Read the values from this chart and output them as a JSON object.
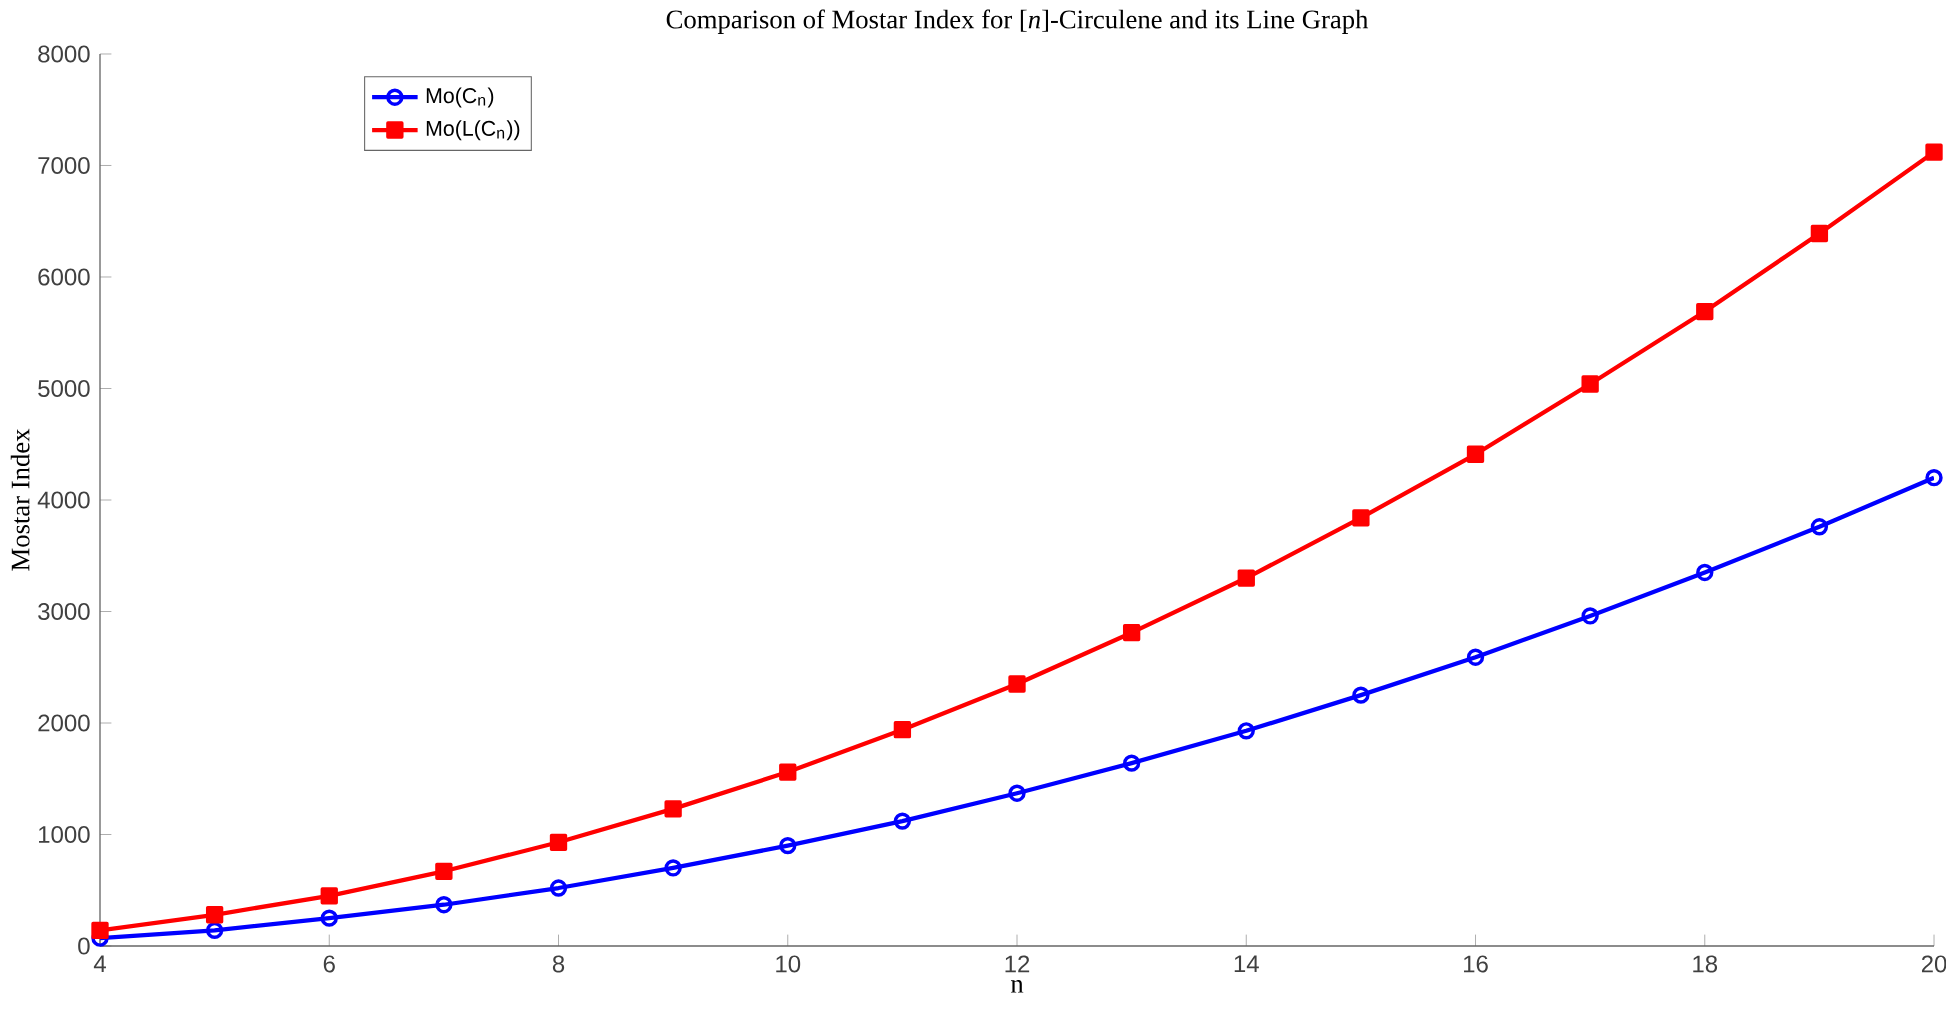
{
  "chart_data": {
    "type": "line",
    "title": "Comparison of Mostar Index for [*n*]-Circulene and its Line Graph",
    "xlabel": "n",
    "ylabel": "Mostar Index",
    "x": [
      4,
      5,
      6,
      7,
      8,
      9,
      10,
      11,
      12,
      13,
      14,
      15,
      16,
      17,
      18,
      19,
      20
    ],
    "series": [
      {
        "name": "Mo(C$_{n}$)",
        "color": "#0000ff",
        "marker": "circle",
        "values": [
          70,
          140,
          250,
          370,
          520,
          700,
          900,
          1120,
          1370,
          1640,
          1930,
          2250,
          2590,
          2960,
          3350,
          3760,
          4200
        ]
      },
      {
        "name": "Mo(L(C$_{n}$))",
        "color": "#ff0000",
        "marker": "square",
        "values": [
          140,
          280,
          450,
          670,
          930,
          1230,
          1560,
          1940,
          2350,
          2810,
          3300,
          3840,
          4410,
          5040,
          5690,
          6390,
          7120
        ]
      }
    ],
    "xlim": [
      4,
      20
    ],
    "xticks": [
      4,
      6,
      8,
      10,
      12,
      14,
      16,
      18,
      20
    ],
    "ylim": [
      0,
      8000
    ],
    "yticks": [
      0,
      1000,
      2000,
      3000,
      4000,
      5000,
      6000,
      7000,
      8000
    ],
    "grid": false,
    "legend": "top left",
    "line_style": "solid"
  }
}
